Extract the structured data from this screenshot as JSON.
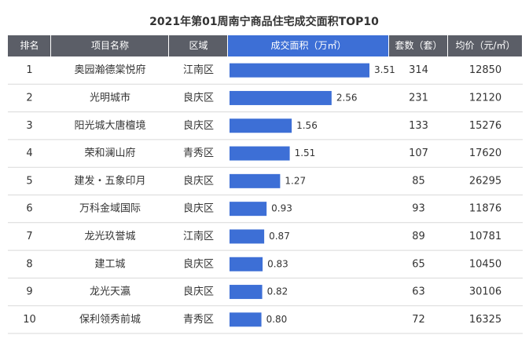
{
  "title": "2021年第01周南宁商品住宅成交面积TOP10",
  "table": {
    "headers": [
      "排名",
      "项目名称",
      "区域",
      "成交面积（万㎡）",
      "套数（套）",
      "均价（元/㎡）"
    ],
    "rows": [
      {
        "rank": 1,
        "name": "奥园瀚德棠悦府",
        "district": "江南区",
        "area": 3.51,
        "area_label": "3.51",
        "units": 314,
        "price": 12850
      },
      {
        "rank": 2,
        "name": "光明城市",
        "district": "良庆区",
        "area": 2.56,
        "area_label": "2.56",
        "units": 231,
        "price": 12120
      },
      {
        "rank": 3,
        "name": "阳光城大唐檀境",
        "district": "良庆区",
        "area": 1.56,
        "area_label": "1.56",
        "units": 133,
        "price": 15276
      },
      {
        "rank": 4,
        "name": "荣和澜山府",
        "district": "青秀区",
        "area": 1.51,
        "area_label": "1.51",
        "units": 107,
        "price": 17620
      },
      {
        "rank": 5,
        "name": "建发・五象印月",
        "district": "良庆区",
        "area": 1.27,
        "area_label": "1.27",
        "units": 85,
        "price": 26295
      },
      {
        "rank": 6,
        "name": "万科金域国际",
        "district": "良庆区",
        "area": 0.93,
        "area_label": "0.93",
        "units": 93,
        "price": 11876
      },
      {
        "rank": 7,
        "name": "龙光玖誉城",
        "district": "江南区",
        "area": 0.87,
        "area_label": "0.87",
        "units": 89,
        "price": 10781
      },
      {
        "rank": 8,
        "name": "建工城",
        "district": "良庆区",
        "area": 0.83,
        "area_label": "0.83",
        "units": 65,
        "price": 10450
      },
      {
        "rank": 9,
        "name": "龙光天瀛",
        "district": "良庆区",
        "area": 0.82,
        "area_label": "0.82",
        "units": 63,
        "price": 30106
      },
      {
        "rank": 10,
        "name": "保利领秀前城",
        "district": "青秀区",
        "area": 0.8,
        "area_label": "0.80",
        "units": 72,
        "price": 16325
      }
    ]
  }
}
